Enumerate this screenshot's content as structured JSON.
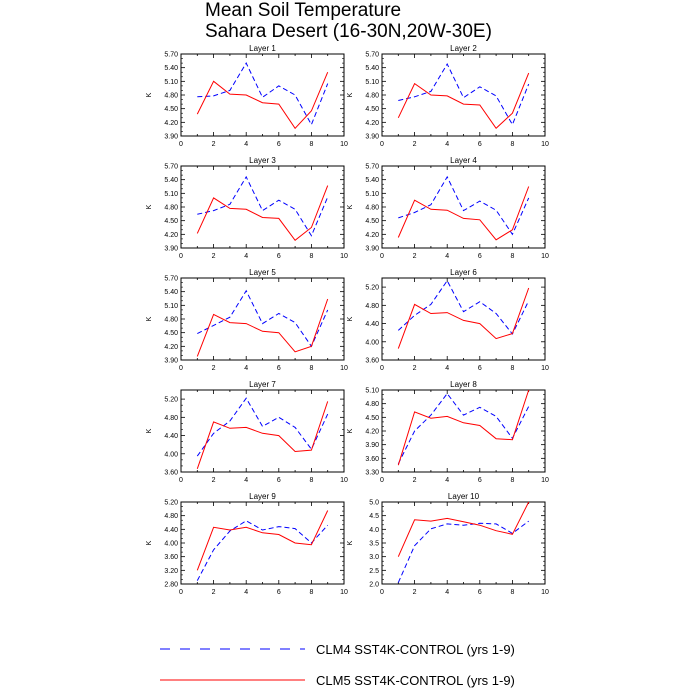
{
  "title_line1": "Mean Soil Temperature",
  "title_line2": "Sahara Desert (16-30N,20W-30E)",
  "legend": [
    {
      "label": "CLM4 SST4K-CONTROL (yrs 1-9)",
      "color": "#0000ff",
      "dash": "dashed"
    },
    {
      "label": "CLM5 SST4K-CONTROL (yrs 1-9)",
      "color": "#ff0000",
      "dash": "solid"
    }
  ],
  "chart_data": [
    {
      "type": "line",
      "title": "Layer 1",
      "xlabel": "",
      "ylabel": "K",
      "xlim": [
        0,
        10
      ],
      "ylim": [
        3.9,
        5.7
      ],
      "xticks": [
        "0",
        "2",
        "4",
        "6",
        "8",
        "10"
      ],
      "yticks": [
        "3.90",
        "4.20",
        "4.50",
        "4.80",
        "5.10",
        "5.40",
        "5.70"
      ],
      "x": [
        1,
        2,
        3,
        4,
        5,
        6,
        7,
        8,
        9
      ],
      "series": [
        {
          "name": "CLM4 SST4K-CONTROL (yrs 1-9)",
          "values": [
            4.76,
            4.78,
            4.9,
            5.5,
            4.75,
            5.0,
            4.8,
            4.15,
            5.05
          ]
        },
        {
          "name": "CLM5 SST4K-CONTROL (yrs 1-9)",
          "values": [
            4.38,
            5.1,
            4.82,
            4.8,
            4.63,
            4.6,
            4.07,
            4.45,
            5.3
          ]
        }
      ]
    },
    {
      "type": "line",
      "title": "Layer 2",
      "xlabel": "",
      "ylabel": "K",
      "xlim": [
        0,
        10
      ],
      "ylim": [
        3.9,
        5.7
      ],
      "xticks": [
        "0",
        "2",
        "4",
        "6",
        "8",
        "10"
      ],
      "yticks": [
        "3.90",
        "4.20",
        "4.50",
        "4.80",
        "5.10",
        "5.40",
        "5.70"
      ],
      "x": [
        1,
        2,
        3,
        4,
        5,
        6,
        7,
        8,
        9
      ],
      "series": [
        {
          "name": "CLM4 SST4K-CONTROL (yrs 1-9)",
          "values": [
            4.68,
            4.76,
            4.88,
            5.48,
            4.74,
            4.98,
            4.78,
            4.15,
            5.04
          ]
        },
        {
          "name": "CLM5 SST4K-CONTROL (yrs 1-9)",
          "values": [
            4.3,
            5.05,
            4.8,
            4.78,
            4.6,
            4.58,
            4.07,
            4.4,
            5.28
          ]
        }
      ]
    },
    {
      "type": "line",
      "title": "Layer 3",
      "xlabel": "",
      "ylabel": "K",
      "xlim": [
        0,
        10
      ],
      "ylim": [
        3.9,
        5.7
      ],
      "xticks": [
        "0",
        "2",
        "4",
        "6",
        "8",
        "10"
      ],
      "yticks": [
        "3.90",
        "4.20",
        "4.50",
        "4.80",
        "5.10",
        "5.40",
        "5.70"
      ],
      "x": [
        1,
        2,
        3,
        4,
        5,
        6,
        7,
        8,
        9
      ],
      "series": [
        {
          "name": "CLM4 SST4K-CONTROL (yrs 1-9)",
          "values": [
            4.64,
            4.72,
            4.86,
            5.46,
            4.72,
            4.95,
            4.75,
            4.17,
            5.02
          ]
        },
        {
          "name": "CLM5 SST4K-CONTROL (yrs 1-9)",
          "values": [
            4.22,
            5.0,
            4.77,
            4.75,
            4.57,
            4.55,
            4.07,
            4.35,
            5.27
          ]
        }
      ]
    },
    {
      "type": "line",
      "title": "Layer 4",
      "xlabel": "",
      "ylabel": "K",
      "xlim": [
        0,
        10
      ],
      "ylim": [
        3.9,
        5.7
      ],
      "xticks": [
        "0",
        "2",
        "4",
        "6",
        "8",
        "10"
      ],
      "yticks": [
        "3.90",
        "4.20",
        "4.50",
        "4.80",
        "5.10",
        "5.40",
        "5.70"
      ],
      "x": [
        1,
        2,
        3,
        4,
        5,
        6,
        7,
        8,
        9
      ],
      "series": [
        {
          "name": "CLM4 SST4K-CONTROL (yrs 1-9)",
          "values": [
            4.56,
            4.68,
            4.85,
            5.46,
            4.72,
            4.93,
            4.73,
            4.2,
            5.0
          ]
        },
        {
          "name": "CLM5 SST4K-CONTROL (yrs 1-9)",
          "values": [
            4.13,
            4.95,
            4.75,
            4.73,
            4.55,
            4.52,
            4.08,
            4.3,
            5.25
          ]
        }
      ]
    },
    {
      "type": "line",
      "title": "Layer 5",
      "xlabel": "",
      "ylabel": "K",
      "xlim": [
        0,
        10
      ],
      "ylim": [
        3.9,
        5.7
      ],
      "xticks": [
        "0",
        "2",
        "4",
        "6",
        "8",
        "10"
      ],
      "yticks": [
        "3.90",
        "4.20",
        "4.50",
        "4.80",
        "5.10",
        "5.40",
        "5.70"
      ],
      "x": [
        1,
        2,
        3,
        4,
        5,
        6,
        7,
        8,
        9
      ],
      "series": [
        {
          "name": "CLM4 SST4K-CONTROL (yrs 1-9)",
          "values": [
            4.48,
            4.66,
            4.84,
            5.42,
            4.7,
            4.92,
            4.72,
            4.2,
            5.0
          ]
        },
        {
          "name": "CLM5 SST4K-CONTROL (yrs 1-9)",
          "values": [
            3.98,
            4.9,
            4.72,
            4.7,
            4.53,
            4.5,
            4.08,
            4.2,
            5.24
          ]
        }
      ]
    },
    {
      "type": "line",
      "title": "Layer 6",
      "xlabel": "",
      "ylabel": "K",
      "xlim": [
        0,
        10
      ],
      "ylim": [
        3.6,
        5.4
      ],
      "xticks": [
        "0",
        "2",
        "4",
        "6",
        "8",
        "10"
      ],
      "yticks": [
        "3.60",
        "4.00",
        "4.40",
        "4.80",
        "5.20"
      ],
      "x": [
        1,
        2,
        3,
        4,
        5,
        6,
        7,
        8,
        9
      ],
      "series": [
        {
          "name": "CLM4 SST4K-CONTROL (yrs 1-9)",
          "values": [
            4.25,
            4.58,
            4.82,
            5.34,
            4.66,
            4.88,
            4.62,
            4.17,
            4.9
          ]
        },
        {
          "name": "CLM5 SST4K-CONTROL (yrs 1-9)",
          "values": [
            3.85,
            4.82,
            4.62,
            4.64,
            4.47,
            4.4,
            4.07,
            4.18,
            5.18
          ]
        }
      ]
    },
    {
      "type": "line",
      "title": "Layer 7",
      "xlabel": "",
      "ylabel": "K",
      "xlim": [
        0,
        10
      ],
      "ylim": [
        3.6,
        5.4
      ],
      "xticks": [
        "0",
        "2",
        "4",
        "6",
        "8",
        "10"
      ],
      "yticks": [
        "3.60",
        "4.00",
        "4.40",
        "4.80",
        "5.20"
      ],
      "x": [
        1,
        2,
        3,
        4,
        5,
        6,
        7,
        8,
        9
      ],
      "series": [
        {
          "name": "CLM4 SST4K-CONTROL (yrs 1-9)",
          "values": [
            3.95,
            4.45,
            4.72,
            5.22,
            4.6,
            4.8,
            4.58,
            4.1,
            4.87
          ]
        },
        {
          "name": "CLM5 SST4K-CONTROL (yrs 1-9)",
          "values": [
            3.67,
            4.7,
            4.56,
            4.58,
            4.45,
            4.4,
            4.05,
            4.08,
            5.15
          ]
        }
      ]
    },
    {
      "type": "line",
      "title": "Layer 8",
      "xlabel": "",
      "ylabel": "K",
      "xlim": [
        0,
        10
      ],
      "ylim": [
        3.3,
        5.1
      ],
      "xticks": [
        "0",
        "2",
        "4",
        "6",
        "8",
        "10"
      ],
      "yticks": [
        "3.30",
        "3.60",
        "3.90",
        "4.20",
        "4.50",
        "4.80",
        "5.10"
      ],
      "x": [
        1,
        2,
        3,
        4,
        5,
        6,
        7,
        8,
        9
      ],
      "series": [
        {
          "name": "CLM4 SST4K-CONTROL (yrs 1-9)",
          "values": [
            3.48,
            4.2,
            4.55,
            5.02,
            4.55,
            4.72,
            4.52,
            4.04,
            4.74
          ]
        },
        {
          "name": "CLM5 SST4K-CONTROL (yrs 1-9)",
          "values": [
            3.45,
            4.62,
            4.48,
            4.52,
            4.38,
            4.32,
            4.03,
            4.01,
            5.1
          ]
        }
      ]
    },
    {
      "type": "line",
      "title": "Layer 9",
      "xlabel": "",
      "ylabel": "K",
      "xlim": [
        0,
        10
      ],
      "ylim": [
        2.8,
        5.2
      ],
      "xticks": [
        "0",
        "2",
        "4",
        "6",
        "8",
        "10"
      ],
      "yticks": [
        "2.80",
        "3.20",
        "3.60",
        "4.00",
        "4.40",
        "4.80",
        "5.20"
      ],
      "x": [
        1,
        2,
        3,
        4,
        5,
        6,
        7,
        8,
        9
      ],
      "series": [
        {
          "name": "CLM4 SST4K-CONTROL (yrs 1-9)",
          "values": [
            2.9,
            3.8,
            4.35,
            4.65,
            4.38,
            4.48,
            4.42,
            4.0,
            4.52
          ]
        },
        {
          "name": "CLM5 SST4K-CONTROL (yrs 1-9)",
          "values": [
            3.2,
            4.46,
            4.38,
            4.46,
            4.3,
            4.25,
            4.0,
            3.95,
            4.95
          ]
        }
      ]
    },
    {
      "type": "line",
      "title": "Layer 10",
      "xlabel": "",
      "ylabel": "K",
      "xlim": [
        0,
        10
      ],
      "ylim": [
        2.0,
        5.0
      ],
      "xticks": [
        "0",
        "2",
        "4",
        "6",
        "8",
        "10"
      ],
      "yticks": [
        "2.0",
        "2.5",
        "3.0",
        "3.5",
        "4.0",
        "4.5",
        "5.0"
      ],
      "x": [
        1,
        2,
        3,
        4,
        5,
        6,
        7,
        8,
        9
      ],
      "series": [
        {
          "name": "CLM4 SST4K-CONTROL (yrs 1-9)",
          "values": [
            2.05,
            3.4,
            4.02,
            4.2,
            4.15,
            4.22,
            4.2,
            3.85,
            4.3
          ]
        },
        {
          "name": "CLM5 SST4K-CONTROL (yrs 1-9)",
          "values": [
            3.0,
            4.35,
            4.3,
            4.4,
            4.28,
            4.15,
            3.95,
            3.82,
            5.0
          ]
        }
      ]
    }
  ]
}
